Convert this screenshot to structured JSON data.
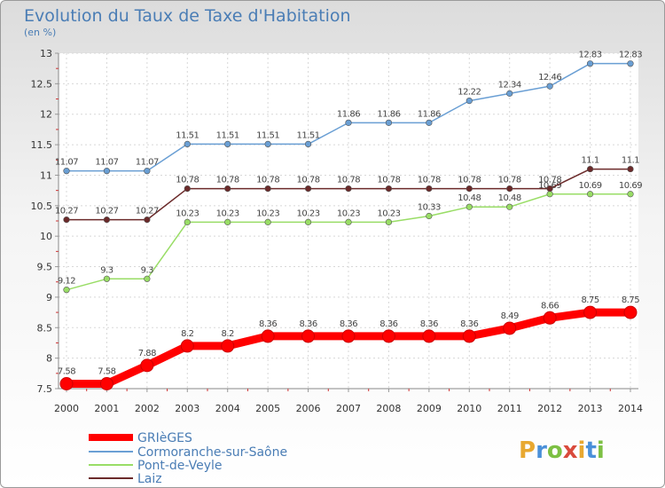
{
  "header": {
    "title": "Evolution du Taux de Taxe d'Habitation",
    "subtitle": "(en %)"
  },
  "brand": {
    "letters": [
      "P",
      "r",
      "o",
      "x",
      "i",
      "t",
      "i"
    ],
    "colors": [
      "#e8a830",
      "#4a90d9",
      "#7cc043",
      "#d94a3c",
      "#e8a830",
      "#4a90d9",
      "#7cc043"
    ]
  },
  "chart_data": {
    "type": "line",
    "title": "Evolution du Taux de Taxe d'Habitation",
    "ylabel": "(en %)",
    "xlabel": "",
    "x": [
      "2000",
      "2001",
      "2002",
      "2003",
      "2004",
      "2005",
      "2006",
      "2007",
      "2008",
      "2009",
      "2010",
      "2011",
      "2012",
      "2013",
      "2014"
    ],
    "ylim": [
      7.5,
      13
    ],
    "yticks": [
      "7.5",
      "8",
      "8.5",
      "9",
      "9.5",
      "10",
      "10.5",
      "11",
      "11.5",
      "12",
      "12.5",
      "13"
    ],
    "grid": true,
    "legend_position": "bottom-left",
    "series": [
      {
        "name": "GRIèGES",
        "color": "#ff0000",
        "values": [
          7.58,
          7.58,
          7.88,
          8.2,
          8.2,
          8.36,
          8.36,
          8.36,
          8.36,
          8.36,
          8.36,
          8.49,
          8.66,
          8.75,
          8.75
        ],
        "labels": [
          "7.58",
          "7.58",
          "7.88",
          "8.2",
          "8.2",
          "8.36",
          "8.36",
          "8.36",
          "8.36",
          "8.36",
          "8.36",
          "8.49",
          "8.66",
          "8.75",
          "8.75"
        ]
      },
      {
        "name": "Cormoranche-sur-Saône",
        "color": "#6a9fd4",
        "values": [
          11.07,
          11.07,
          11.07,
          11.51,
          11.51,
          11.51,
          11.51,
          11.86,
          11.86,
          11.86,
          12.22,
          12.34,
          12.46,
          12.83,
          12.83
        ],
        "labels": [
          "11.07",
          "11.07",
          "11.07",
          "11.51",
          "11.51",
          "11.51",
          "11.51",
          "11.86",
          "11.86",
          "11.86",
          "12.22",
          "12.34",
          "12.46",
          "12.83",
          "12.83"
        ]
      },
      {
        "name": "Pont-de-Veyle",
        "color": "#99dd66",
        "values": [
          9.12,
          9.3,
          9.3,
          10.23,
          10.23,
          10.23,
          10.23,
          10.23,
          10.23,
          10.33,
          10.48,
          10.48,
          10.69,
          10.69,
          10.69
        ],
        "labels": [
          "9.12",
          "9.3",
          "9.3",
          "10.23",
          "10.23",
          "10.23",
          "10.23",
          "10.23",
          "10.23",
          "10.33",
          "10.48",
          "10.48",
          "10.69",
          "10.69",
          "10.69"
        ]
      },
      {
        "name": "Laiz",
        "color": "#6b2a2a",
        "values": [
          10.27,
          10.27,
          10.27,
          10.78,
          10.78,
          10.78,
          10.78,
          10.78,
          10.78,
          10.78,
          10.78,
          10.78,
          10.78,
          11.1,
          11.1
        ],
        "labels": [
          "10.27",
          "10.27",
          "10.27",
          "10.78",
          "10.78",
          "10.78",
          "10.78",
          "10.78",
          "10.78",
          "10.78",
          "10.78",
          "10.78",
          "10.78",
          "11.1",
          "11.1"
        ]
      }
    ]
  }
}
